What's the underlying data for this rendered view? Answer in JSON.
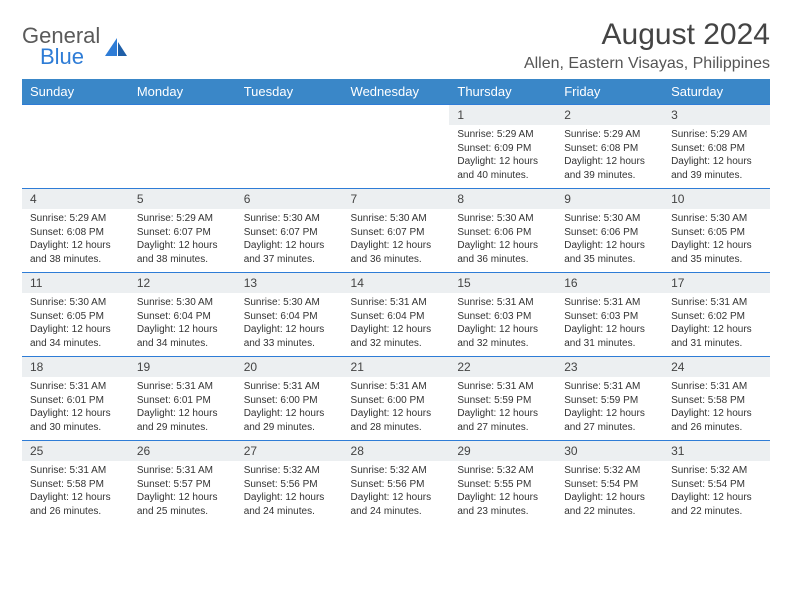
{
  "logo": {
    "line1": "General",
    "line2": "Blue"
  },
  "title": "August 2024",
  "location": "Allen, Eastern Visayas, Philippines",
  "colors": {
    "header_bg": "#3a87c8",
    "accent_blue": "#2e7cd6",
    "daynum_bg": "#eceff1",
    "text": "#333333",
    "logo_gray": "#5a5a5a"
  },
  "fonts": {
    "title_size": 30,
    "location_size": 16,
    "th_size": 13,
    "daynum_size": 12,
    "cell_size": 10
  },
  "weekdays": [
    "Sunday",
    "Monday",
    "Tuesday",
    "Wednesday",
    "Thursday",
    "Friday",
    "Saturday"
  ],
  "weeks": [
    [
      null,
      null,
      null,
      null,
      {
        "n": "1",
        "sunrise": "5:29 AM",
        "sunset": "6:09 PM",
        "daylight": "12 hours and 40 minutes."
      },
      {
        "n": "2",
        "sunrise": "5:29 AM",
        "sunset": "6:08 PM",
        "daylight": "12 hours and 39 minutes."
      },
      {
        "n": "3",
        "sunrise": "5:29 AM",
        "sunset": "6:08 PM",
        "daylight": "12 hours and 39 minutes."
      }
    ],
    [
      {
        "n": "4",
        "sunrise": "5:29 AM",
        "sunset": "6:08 PM",
        "daylight": "12 hours and 38 minutes."
      },
      {
        "n": "5",
        "sunrise": "5:29 AM",
        "sunset": "6:07 PM",
        "daylight": "12 hours and 38 minutes."
      },
      {
        "n": "6",
        "sunrise": "5:30 AM",
        "sunset": "6:07 PM",
        "daylight": "12 hours and 37 minutes."
      },
      {
        "n": "7",
        "sunrise": "5:30 AM",
        "sunset": "6:07 PM",
        "daylight": "12 hours and 36 minutes."
      },
      {
        "n": "8",
        "sunrise": "5:30 AM",
        "sunset": "6:06 PM",
        "daylight": "12 hours and 36 minutes."
      },
      {
        "n": "9",
        "sunrise": "5:30 AM",
        "sunset": "6:06 PM",
        "daylight": "12 hours and 35 minutes."
      },
      {
        "n": "10",
        "sunrise": "5:30 AM",
        "sunset": "6:05 PM",
        "daylight": "12 hours and 35 minutes."
      }
    ],
    [
      {
        "n": "11",
        "sunrise": "5:30 AM",
        "sunset": "6:05 PM",
        "daylight": "12 hours and 34 minutes."
      },
      {
        "n": "12",
        "sunrise": "5:30 AM",
        "sunset": "6:04 PM",
        "daylight": "12 hours and 34 minutes."
      },
      {
        "n": "13",
        "sunrise": "5:30 AM",
        "sunset": "6:04 PM",
        "daylight": "12 hours and 33 minutes."
      },
      {
        "n": "14",
        "sunrise": "5:31 AM",
        "sunset": "6:04 PM",
        "daylight": "12 hours and 32 minutes."
      },
      {
        "n": "15",
        "sunrise": "5:31 AM",
        "sunset": "6:03 PM",
        "daylight": "12 hours and 32 minutes."
      },
      {
        "n": "16",
        "sunrise": "5:31 AM",
        "sunset": "6:03 PM",
        "daylight": "12 hours and 31 minutes."
      },
      {
        "n": "17",
        "sunrise": "5:31 AM",
        "sunset": "6:02 PM",
        "daylight": "12 hours and 31 minutes."
      }
    ],
    [
      {
        "n": "18",
        "sunrise": "5:31 AM",
        "sunset": "6:01 PM",
        "daylight": "12 hours and 30 minutes."
      },
      {
        "n": "19",
        "sunrise": "5:31 AM",
        "sunset": "6:01 PM",
        "daylight": "12 hours and 29 minutes."
      },
      {
        "n": "20",
        "sunrise": "5:31 AM",
        "sunset": "6:00 PM",
        "daylight": "12 hours and 29 minutes."
      },
      {
        "n": "21",
        "sunrise": "5:31 AM",
        "sunset": "6:00 PM",
        "daylight": "12 hours and 28 minutes."
      },
      {
        "n": "22",
        "sunrise": "5:31 AM",
        "sunset": "5:59 PM",
        "daylight": "12 hours and 27 minutes."
      },
      {
        "n": "23",
        "sunrise": "5:31 AM",
        "sunset": "5:59 PM",
        "daylight": "12 hours and 27 minutes."
      },
      {
        "n": "24",
        "sunrise": "5:31 AM",
        "sunset": "5:58 PM",
        "daylight": "12 hours and 26 minutes."
      }
    ],
    [
      {
        "n": "25",
        "sunrise": "5:31 AM",
        "sunset": "5:58 PM",
        "daylight": "12 hours and 26 minutes."
      },
      {
        "n": "26",
        "sunrise": "5:31 AM",
        "sunset": "5:57 PM",
        "daylight": "12 hours and 25 minutes."
      },
      {
        "n": "27",
        "sunrise": "5:32 AM",
        "sunset": "5:56 PM",
        "daylight": "12 hours and 24 minutes."
      },
      {
        "n": "28",
        "sunrise": "5:32 AM",
        "sunset": "5:56 PM",
        "daylight": "12 hours and 24 minutes."
      },
      {
        "n": "29",
        "sunrise": "5:32 AM",
        "sunset": "5:55 PM",
        "daylight": "12 hours and 23 minutes."
      },
      {
        "n": "30",
        "sunrise": "5:32 AM",
        "sunset": "5:54 PM",
        "daylight": "12 hours and 22 minutes."
      },
      {
        "n": "31",
        "sunrise": "5:32 AM",
        "sunset": "5:54 PM",
        "daylight": "12 hours and 22 minutes."
      }
    ]
  ],
  "labels": {
    "sunrise": "Sunrise:",
    "sunset": "Sunset:",
    "daylight": "Daylight:"
  }
}
